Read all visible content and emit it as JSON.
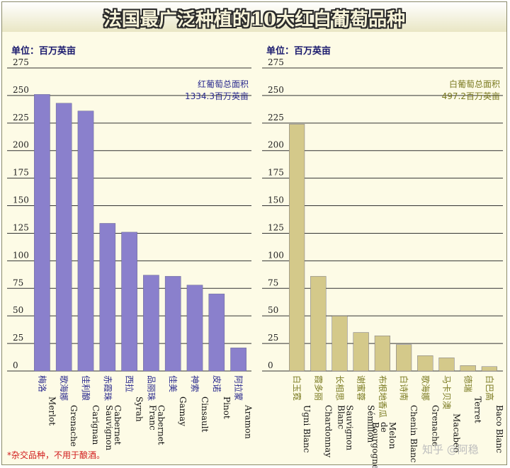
{
  "title": "法国最广泛种植的10大红白葡萄品种",
  "footnote": "*杂交品种，不用于酿酒。",
  "watermark": "知乎 @阿稳",
  "colors": {
    "red_bar": "#8a80cc",
    "white_bar": "#d4c98a",
    "red_text": "#2a2a8e",
    "white_text": "#7a7a20",
    "label_red": "#2a2a8e",
    "label_white": "#7a7a20"
  },
  "chart_data": [
    {
      "type": "bar",
      "unit_label": "单位：百万英亩",
      "total_label": "红葡萄总面积",
      "total_value": "1334.3百万英亩",
      "ylim": [
        0,
        275
      ],
      "yticks": [
        0,
        25,
        50,
        75,
        100,
        125,
        150,
        175,
        200,
        225,
        250,
        275
      ],
      "grid": true,
      "categories": [
        {
          "cn": "梅洛",
          "en": "Merlot"
        },
        {
          "cn": "歌海娜",
          "en": "Grenache"
        },
        {
          "cn": "佳利酿",
          "en": "Carignan"
        },
        {
          "cn": "赤霞珠",
          "en": "Cabernet Sauvignon"
        },
        {
          "cn": "西拉",
          "en": "Syrah"
        },
        {
          "cn": "品丽珠",
          "en": "Cabernet Franc"
        },
        {
          "cn": "佳美",
          "en": "Gamay"
        },
        {
          "cn": "神索",
          "en": "Cinsault"
        },
        {
          "cn": "皮诺",
          "en": "Pinot"
        },
        {
          "cn": "阿拉蒙",
          "en": "Aramon"
        }
      ],
      "values": [
        251,
        243,
        236,
        134,
        126,
        87,
        86,
        78,
        70,
        21
      ]
    },
    {
      "type": "bar",
      "unit_label": "单位：百万英亩",
      "total_label": "白葡萄总面积",
      "total_value": "497.2百万英亩",
      "ylim": [
        0,
        275
      ],
      "yticks": [
        0,
        25,
        50,
        75,
        100,
        125,
        150,
        175,
        200,
        225,
        250,
        275
      ],
      "grid": true,
      "categories": [
        {
          "cn": "白玉霓",
          "en": "Ugni Blanc"
        },
        {
          "cn": "霞多丽",
          "en": "Chardonnay"
        },
        {
          "cn": "长相思",
          "en": "Sauvignon Blanc"
        },
        {
          "cn": "谢蜜蓉",
          "en": "Sémillon"
        },
        {
          "cn": "布根地香瓜",
          "en": "Melon de Bourgogne"
        },
        {
          "cn": "白诗南",
          "en": "Chenin Blanc"
        },
        {
          "cn": "歌海娜",
          "en": "Grenache"
        },
        {
          "cn": "马卡贝澳",
          "en": "Macabeo"
        },
        {
          "cn": "德瑞",
          "en": "Terret"
        },
        {
          "cn": "白巴高",
          "en": "Baco Blanc"
        }
      ],
      "values": [
        224,
        86,
        50,
        35,
        32,
        24,
        14,
        12,
        5,
        4
      ]
    }
  ]
}
